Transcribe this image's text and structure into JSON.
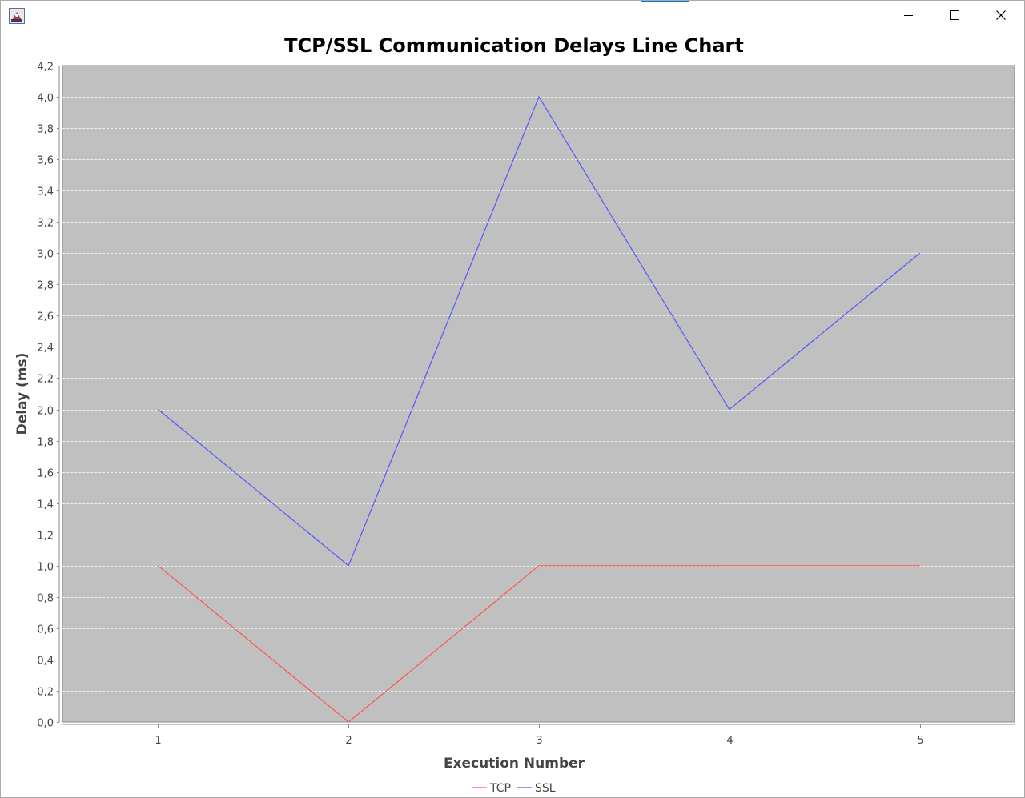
{
  "window": {
    "buttons": [
      "minimize",
      "maximize",
      "close"
    ],
    "icons": {
      "app": "java-app-icon",
      "minimize": "minimize-icon",
      "maximize": "maximize-icon",
      "close": "close-icon"
    }
  },
  "chart_data": {
    "type": "line",
    "title": "TCP/SSL Communication Delays Line Chart",
    "xlabel": "Execution Number",
    "ylabel": "Delay (ms)",
    "categories": [
      "1",
      "2",
      "3",
      "4",
      "5"
    ],
    "series": [
      {
        "name": "TCP",
        "color": "#ff5555",
        "values": [
          1.0,
          0.0,
          1.0,
          1.0,
          1.0
        ]
      },
      {
        "name": "SSL",
        "color": "#5555ff",
        "values": [
          2.0,
          1.0,
          4.0,
          2.0,
          3.0
        ]
      }
    ],
    "ylim": [
      0,
      4.2
    ],
    "yticks": [
      "0,0",
      "0,2",
      "0,4",
      "0,6",
      "0,8",
      "1,0",
      "1,2",
      "1,4",
      "1,6",
      "1,8",
      "2,0",
      "2,2",
      "2,4",
      "2,6",
      "2,8",
      "3,0",
      "3,2",
      "3,4",
      "3,6",
      "3,8",
      "4,0",
      "4,2"
    ],
    "plot_background": "#c0c0c0",
    "grid": true,
    "legend_position": "bottom"
  }
}
